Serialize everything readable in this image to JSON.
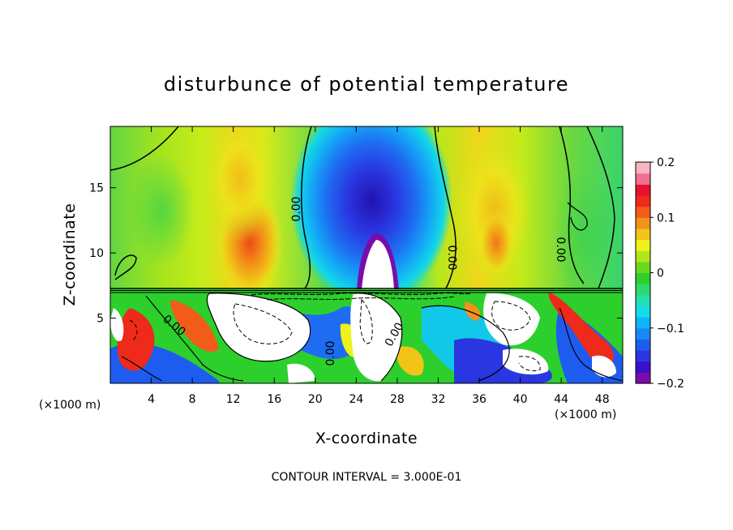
{
  "chart_data": {
    "type": "heatmap",
    "title": "disturbunce of potential temperature",
    "xlabel": "X-coordinate",
    "ylabel": "Z-coordinate",
    "x_unit_left": "(×1000 m)",
    "x_unit_right": "(×1000 m)",
    "xlim": [
      0,
      50
    ],
    "ylim": [
      0,
      19.7
    ],
    "x_ticks": [
      4,
      8,
      12,
      16,
      20,
      24,
      28,
      32,
      36,
      40,
      44,
      48
    ],
    "y_ticks": [
      5,
      10,
      15
    ],
    "colorbar": {
      "range": [
        -0.2,
        0.2
      ],
      "tick_values": [
        -0.2,
        -0.1,
        0,
        0.1,
        0.2
      ],
      "tick_labels": [
        "−0.2",
        "−0.1",
        "0",
        "0.1",
        "0.2"
      ],
      "colors": [
        "#7a0cad",
        "#3a10c8",
        "#2a36e0",
        "#1e5cf0",
        "#1888f5",
        "#10b4f8",
        "#12dcea",
        "#22e0b0",
        "#30d870",
        "#2ccf2c",
        "#6ad81c",
        "#b0e61a",
        "#eef21a",
        "#f2c418",
        "#f29218",
        "#f25c18",
        "#ee2a1a",
        "#e81030",
        "#f07090",
        "#f8b4c0"
      ]
    },
    "contour_label": "0.00",
    "annotation": "CONTOUR INTERVAL = 3.000E-01"
  }
}
